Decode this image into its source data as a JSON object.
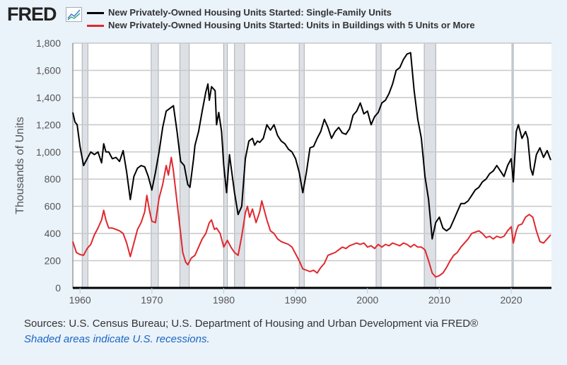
{
  "header": {
    "logo": "FRED",
    "logo_icon": "line-chart-icon"
  },
  "chart_data": {
    "type": "line",
    "title": "",
    "xlabel": "",
    "ylabel": "Thousands of Units",
    "xlim": [
      1959,
      2025.6
    ],
    "ylim": [
      0,
      1800
    ],
    "grid": true,
    "legend_position": "top",
    "x_ticks": [
      1960,
      1970,
      1980,
      1990,
      2000,
      2010,
      2020
    ],
    "x_tick_labels": [
      "1960",
      "1970",
      "1980",
      "1990",
      "2000",
      "2010",
      "2020"
    ],
    "y_ticks": [
      0,
      200,
      400,
      600,
      800,
      1000,
      1200,
      1400,
      1600,
      1800
    ],
    "y_tick_labels": [
      "0",
      "200",
      "400",
      "600",
      "800",
      "1,000",
      "1,200",
      "1,400",
      "1,600",
      "1,800"
    ],
    "recessions": [
      [
        1960.3,
        1961.1
      ],
      [
        1969.9,
        1970.9
      ],
      [
        1973.9,
        1975.2
      ],
      [
        1980.0,
        1980.5
      ],
      [
        1981.5,
        1982.9
      ],
      [
        1990.5,
        1991.2
      ],
      [
        2001.2,
        2001.9
      ],
      [
        2007.9,
        2009.5
      ],
      [
        2020.1,
        2020.3
      ]
    ],
    "series": [
      {
        "name": "New Privately-Owned Housing Units Started: Single-Family Units",
        "color": "#000000",
        "points": [
          [
            1959,
            1290
          ],
          [
            1959.3,
            1220
          ],
          [
            1959.6,
            1200
          ],
          [
            1960,
            1040
          ],
          [
            1960.5,
            900
          ],
          [
            1961,
            950
          ],
          [
            1961.5,
            1000
          ],
          [
            1962,
            980
          ],
          [
            1962.5,
            1000
          ],
          [
            1963,
            920
          ],
          [
            1963.3,
            1060
          ],
          [
            1963.6,
            1000
          ],
          [
            1964,
            1000
          ],
          [
            1964.5,
            950
          ],
          [
            1965,
            960
          ],
          [
            1965.5,
            930
          ],
          [
            1966,
            1010
          ],
          [
            1966.5,
            850
          ],
          [
            1967,
            650
          ],
          [
            1967.5,
            820
          ],
          [
            1968,
            880
          ],
          [
            1968.5,
            900
          ],
          [
            1969,
            890
          ],
          [
            1969.5,
            820
          ],
          [
            1970,
            720
          ],
          [
            1970.5,
            850
          ],
          [
            1971,
            1000
          ],
          [
            1971.5,
            1180
          ],
          [
            1972,
            1300
          ],
          [
            1972.5,
            1320
          ],
          [
            1973,
            1340
          ],
          [
            1973.5,
            1150
          ],
          [
            1974,
            930
          ],
          [
            1974.5,
            900
          ],
          [
            1975,
            760
          ],
          [
            1975.3,
            740
          ],
          [
            1975.8,
            950
          ],
          [
            1976,
            1050
          ],
          [
            1976.5,
            1150
          ],
          [
            1977,
            1300
          ],
          [
            1977.5,
            1440
          ],
          [
            1977.8,
            1500
          ],
          [
            1978,
            1380
          ],
          [
            1978.3,
            1480
          ],
          [
            1978.8,
            1450
          ],
          [
            1979,
            1200
          ],
          [
            1979.3,
            1290
          ],
          [
            1979.7,
            1150
          ],
          [
            1980,
            900
          ],
          [
            1980.4,
            700
          ],
          [
            1980.8,
            980
          ],
          [
            1981,
            900
          ],
          [
            1981.5,
            700
          ],
          [
            1982,
            540
          ],
          [
            1982.5,
            600
          ],
          [
            1983,
            950
          ],
          [
            1983.5,
            1080
          ],
          [
            1984,
            1100
          ],
          [
            1984.3,
            1050
          ],
          [
            1984.7,
            1080
          ],
          [
            1985,
            1070
          ],
          [
            1985.5,
            1100
          ],
          [
            1986,
            1200
          ],
          [
            1986.5,
            1160
          ],
          [
            1987,
            1200
          ],
          [
            1987.5,
            1120
          ],
          [
            1988,
            1080
          ],
          [
            1988.5,
            1060
          ],
          [
            1989,
            1020
          ],
          [
            1989.5,
            1000
          ],
          [
            1990,
            950
          ],
          [
            1990.5,
            850
          ],
          [
            1991,
            700
          ],
          [
            1991.5,
            850
          ],
          [
            1992,
            1030
          ],
          [
            1992.5,
            1040
          ],
          [
            1993,
            1100
          ],
          [
            1993.5,
            1150
          ],
          [
            1994,
            1240
          ],
          [
            1994.5,
            1180
          ],
          [
            1995,
            1100
          ],
          [
            1995.5,
            1150
          ],
          [
            1996,
            1180
          ],
          [
            1996.5,
            1140
          ],
          [
            1997,
            1130
          ],
          [
            1997.5,
            1170
          ],
          [
            1998,
            1270
          ],
          [
            1998.5,
            1300
          ],
          [
            1999,
            1360
          ],
          [
            1999.5,
            1280
          ],
          [
            2000,
            1300
          ],
          [
            2000.5,
            1200
          ],
          [
            2001,
            1260
          ],
          [
            2001.5,
            1290
          ],
          [
            2002,
            1360
          ],
          [
            2002.5,
            1380
          ],
          [
            2003,
            1430
          ],
          [
            2003.5,
            1500
          ],
          [
            2004,
            1600
          ],
          [
            2004.5,
            1620
          ],
          [
            2005,
            1680
          ],
          [
            2005.5,
            1720
          ],
          [
            2006,
            1730
          ],
          [
            2006.5,
            1450
          ],
          [
            2007,
            1240
          ],
          [
            2007.5,
            1100
          ],
          [
            2008,
            820
          ],
          [
            2008.5,
            650
          ],
          [
            2009,
            360
          ],
          [
            2009.5,
            480
          ],
          [
            2010,
            520
          ],
          [
            2010.5,
            440
          ],
          [
            2011,
            420
          ],
          [
            2011.5,
            440
          ],
          [
            2012,
            500
          ],
          [
            2012.5,
            560
          ],
          [
            2013,
            620
          ],
          [
            2013.5,
            620
          ],
          [
            2014,
            640
          ],
          [
            2014.5,
            680
          ],
          [
            2015,
            720
          ],
          [
            2015.5,
            740
          ],
          [
            2016,
            780
          ],
          [
            2016.5,
            800
          ],
          [
            2017,
            840
          ],
          [
            2017.5,
            860
          ],
          [
            2018,
            900
          ],
          [
            2018.5,
            860
          ],
          [
            2019,
            820
          ],
          [
            2019.5,
            900
          ],
          [
            2020,
            950
          ],
          [
            2020.3,
            780
          ],
          [
            2020.7,
            1150
          ],
          [
            2021,
            1200
          ],
          [
            2021.5,
            1100
          ],
          [
            2022,
            1150
          ],
          [
            2022.3,
            1100
          ],
          [
            2022.7,
            880
          ],
          [
            2023,
            830
          ],
          [
            2023.5,
            980
          ],
          [
            2024,
            1030
          ],
          [
            2024.5,
            960
          ],
          [
            2025,
            1010
          ],
          [
            2025.5,
            940
          ]
        ]
      },
      {
        "name": "New Privately-Owned Housing Units Started: Units in Buildings with 5 Units or More",
        "color": "#e0282e",
        "points": [
          [
            1959,
            340
          ],
          [
            1959.5,
            260
          ],
          [
            1960,
            245
          ],
          [
            1960.5,
            240
          ],
          [
            1961,
            290
          ],
          [
            1961.5,
            320
          ],
          [
            1962,
            390
          ],
          [
            1962.5,
            440
          ],
          [
            1963,
            500
          ],
          [
            1963.3,
            570
          ],
          [
            1963.6,
            500
          ],
          [
            1964,
            440
          ],
          [
            1964.5,
            440
          ],
          [
            1965,
            430
          ],
          [
            1965.5,
            420
          ],
          [
            1966,
            400
          ],
          [
            1966.5,
            330
          ],
          [
            1967,
            230
          ],
          [
            1967.5,
            330
          ],
          [
            1968,
            430
          ],
          [
            1968.5,
            480
          ],
          [
            1969,
            560
          ],
          [
            1969.3,
            680
          ],
          [
            1969.7,
            560
          ],
          [
            1970,
            490
          ],
          [
            1970.5,
            480
          ],
          [
            1971,
            660
          ],
          [
            1971.5,
            760
          ],
          [
            1972,
            900
          ],
          [
            1972.3,
            830
          ],
          [
            1972.7,
            960
          ],
          [
            1973,
            860
          ],
          [
            1973.5,
            630
          ],
          [
            1974,
            400
          ],
          [
            1974.3,
            260
          ],
          [
            1974.7,
            190
          ],
          [
            1975,
            170
          ],
          [
            1975.5,
            220
          ],
          [
            1976,
            240
          ],
          [
            1976.5,
            300
          ],
          [
            1977,
            360
          ],
          [
            1977.5,
            400
          ],
          [
            1978,
            480
          ],
          [
            1978.3,
            500
          ],
          [
            1978.7,
            430
          ],
          [
            1979,
            440
          ],
          [
            1979.5,
            400
          ],
          [
            1980,
            300
          ],
          [
            1980.5,
            350
          ],
          [
            1981,
            300
          ],
          [
            1981.5,
            260
          ],
          [
            1982,
            240
          ],
          [
            1982.5,
            380
          ],
          [
            1983,
            550
          ],
          [
            1983.3,
            600
          ],
          [
            1983.6,
            520
          ],
          [
            1984,
            580
          ],
          [
            1984.5,
            480
          ],
          [
            1985,
            560
          ],
          [
            1985.3,
            640
          ],
          [
            1985.7,
            560
          ],
          [
            1986,
            500
          ],
          [
            1986.5,
            420
          ],
          [
            1987,
            400
          ],
          [
            1987.5,
            360
          ],
          [
            1988,
            340
          ],
          [
            1988.5,
            330
          ],
          [
            1989,
            320
          ],
          [
            1989.5,
            300
          ],
          [
            1990,
            250
          ],
          [
            1990.5,
            200
          ],
          [
            1991,
            140
          ],
          [
            1991.5,
            130
          ],
          [
            1992,
            120
          ],
          [
            1992.5,
            130
          ],
          [
            1993,
            110
          ],
          [
            1993.5,
            150
          ],
          [
            1994,
            180
          ],
          [
            1994.5,
            240
          ],
          [
            1995,
            250
          ],
          [
            1995.5,
            260
          ],
          [
            1996,
            280
          ],
          [
            1996.5,
            300
          ],
          [
            1997,
            290
          ],
          [
            1997.5,
            310
          ],
          [
            1998,
            320
          ],
          [
            1998.5,
            330
          ],
          [
            1999,
            320
          ],
          [
            1999.5,
            330
          ],
          [
            2000,
            300
          ],
          [
            2000.5,
            310
          ],
          [
            2001,
            290
          ],
          [
            2001.5,
            320
          ],
          [
            2002,
            300
          ],
          [
            2002.5,
            320
          ],
          [
            2003,
            310
          ],
          [
            2003.5,
            330
          ],
          [
            2004,
            320
          ],
          [
            2004.5,
            310
          ],
          [
            2005,
            330
          ],
          [
            2005.5,
            320
          ],
          [
            2006,
            300
          ],
          [
            2006.5,
            320
          ],
          [
            2007,
            300
          ],
          [
            2007.5,
            300
          ],
          [
            2008,
            280
          ],
          [
            2008.5,
            200
          ],
          [
            2009,
            110
          ],
          [
            2009.5,
            80
          ],
          [
            2010,
            90
          ],
          [
            2010.5,
            110
          ],
          [
            2011,
            150
          ],
          [
            2011.5,
            200
          ],
          [
            2012,
            240
          ],
          [
            2012.5,
            260
          ],
          [
            2013,
            300
          ],
          [
            2013.5,
            330
          ],
          [
            2014,
            360
          ],
          [
            2014.5,
            400
          ],
          [
            2015,
            410
          ],
          [
            2015.5,
            420
          ],
          [
            2016,
            400
          ],
          [
            2016.5,
            370
          ],
          [
            2017,
            380
          ],
          [
            2017.5,
            360
          ],
          [
            2018,
            380
          ],
          [
            2018.5,
            370
          ],
          [
            2019,
            380
          ],
          [
            2019.5,
            420
          ],
          [
            2020,
            450
          ],
          [
            2020.3,
            330
          ],
          [
            2020.7,
            420
          ],
          [
            2021,
            460
          ],
          [
            2021.5,
            470
          ],
          [
            2022,
            520
          ],
          [
            2022.5,
            540
          ],
          [
            2023,
            520
          ],
          [
            2023.5,
            420
          ],
          [
            2024,
            340
          ],
          [
            2024.5,
            330
          ],
          [
            2025,
            360
          ],
          [
            2025.5,
            390
          ]
        ]
      }
    ]
  },
  "footer": {
    "sources": "Sources: U.S. Census Bureau; U.S. Department of Housing and Urban Development via FRED®",
    "recession_note": "Shaded areas indicate U.S. recessions."
  }
}
